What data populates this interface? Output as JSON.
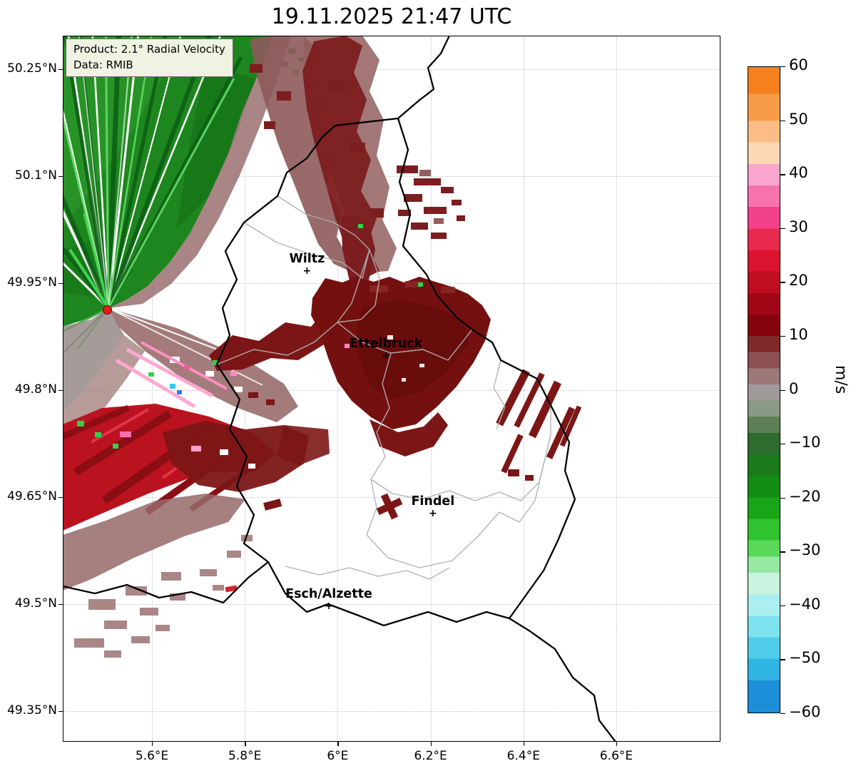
{
  "title": "19.11.2025 21:47 UTC",
  "info_box": {
    "line1": "Product: 2.1° Radial Velocity",
    "line2": "Data: RMIB"
  },
  "axes": {
    "lat_ticks": [
      {
        "label": "50.25°N",
        "value": 50.25
      },
      {
        "label": "50.1°N",
        "value": 50.1
      },
      {
        "label": "49.95°N",
        "value": 49.95
      },
      {
        "label": "49.8°N",
        "value": 49.8
      },
      {
        "label": "49.65°N",
        "value": 49.65
      },
      {
        "label": "49.5°N",
        "value": 49.5
      },
      {
        "label": "49.35°N",
        "value": 49.35
      }
    ],
    "lon_ticks": [
      {
        "label": "5.6°E",
        "value": 5.6
      },
      {
        "label": "5.8°E",
        "value": 5.8
      },
      {
        "label": "6°E",
        "value": 6.0
      },
      {
        "label": "6.2°E",
        "value": 6.2
      },
      {
        "label": "6.4°E",
        "value": 6.4
      },
      {
        "label": "6.6°E",
        "value": 6.6
      }
    ]
  },
  "cities": [
    {
      "name": "Wiltz",
      "lon": 5.934,
      "lat": 49.966
    },
    {
      "name": "Ettelbruck",
      "lon": 6.104,
      "lat": 49.847
    },
    {
      "name": "Findel",
      "lon": 6.205,
      "lat": 49.626
    },
    {
      "name": "Esch/Alzette",
      "lon": 5.981,
      "lat": 49.496
    }
  ],
  "radar_site": {
    "lon": 5.505,
    "lat": 49.912
  },
  "colorbar": {
    "unit": "m/s",
    "min": -60,
    "max": 60,
    "ticks": [
      60,
      50,
      40,
      30,
      20,
      10,
      0,
      -10,
      -20,
      -30,
      -40,
      -50,
      -60
    ],
    "stops": [
      {
        "v": 60,
        "c": "#f5801c"
      },
      {
        "v": 55,
        "c": "#f99c4a"
      },
      {
        "v": 50,
        "c": "#fbbd85"
      },
      {
        "v": 46,
        "c": "#fcd9b4"
      },
      {
        "v": 42,
        "c": "#fba6ce"
      },
      {
        "v": 38,
        "c": "#f873ae"
      },
      {
        "v": 34,
        "c": "#f2418b"
      },
      {
        "v": 30,
        "c": "#e92a4f"
      },
      {
        "v": 26,
        "c": "#dc1430"
      },
      {
        "v": 22,
        "c": "#c00d20"
      },
      {
        "v": 18,
        "c": "#a10616"
      },
      {
        "v": 14,
        "c": "#85030e"
      },
      {
        "v": 10,
        "c": "#7e2a2a"
      },
      {
        "v": 7,
        "c": "#8d5151"
      },
      {
        "v": 4,
        "c": "#9b7979"
      },
      {
        "v": 1,
        "c": "#a09a9a"
      },
      {
        "v": -2,
        "c": "#8a9a84"
      },
      {
        "v": -5,
        "c": "#5c8156"
      },
      {
        "v": -8,
        "c": "#2e6b2e"
      },
      {
        "v": -12,
        "c": "#1b7a1b"
      },
      {
        "v": -16,
        "c": "#128c12"
      },
      {
        "v": -20,
        "c": "#18a518"
      },
      {
        "v": -24,
        "c": "#2fc32f"
      },
      {
        "v": -28,
        "c": "#5ad95a"
      },
      {
        "v": -31,
        "c": "#96e8a0"
      },
      {
        "v": -34,
        "c": "#c7f3df"
      },
      {
        "v": -38,
        "c": "#abeff0"
      },
      {
        "v": -42,
        "c": "#7fe3ef"
      },
      {
        "v": -46,
        "c": "#4fcde9"
      },
      {
        "v": -50,
        "c": "#30b4e2"
      },
      {
        "v": -54,
        "c": "#1d8ed8"
      },
      {
        "v": -60,
        "c": "#1d8ed8"
      }
    ]
  },
  "chart_data": {
    "type": "heatmap",
    "title": "19.11.2025 21:47 UTC",
    "product": "2.1° Radial Velocity",
    "data_source": "RMIB",
    "variable": "radar radial velocity",
    "unit": "m/s",
    "x_axis": {
      "ticks": [
        "5.6°E",
        "5.8°E",
        "6°E",
        "6.2°E",
        "6.4°E",
        "6.6°E"
      ],
      "range_deg_e": [
        5.41,
        6.82
      ]
    },
    "y_axis": {
      "ticks": [
        "50.25°N",
        "50.1°N",
        "49.95°N",
        "49.8°N",
        "49.65°N",
        "49.5°N",
        "49.35°N"
      ],
      "range_deg_n": [
        49.31,
        50.3
      ]
    },
    "colorbar": {
      "label": "m/s",
      "min": -60,
      "max": 60,
      "ticks": [
        60,
        50,
        40,
        30,
        20,
        10,
        0,
        -10,
        -20,
        -30,
        -40,
        -50,
        -60
      ]
    },
    "grid": "dotted graticule at tick positions",
    "legend_position": "vertical colorbar at right",
    "radar_site": {
      "lon": 5.505,
      "lat": 49.912,
      "marker": "red filled circle"
    },
    "cities": [
      {
        "name": "Wiltz",
        "lon": 5.934,
        "lat": 49.966
      },
      {
        "name": "Ettelbruck",
        "lon": 6.104,
        "lat": 49.847
      },
      {
        "name": "Findel",
        "lon": 6.205,
        "lat": 49.626
      },
      {
        "name": "Esch/Alzette",
        "lon": 5.981,
        "lat": 49.496
      }
    ],
    "velocity_regions": [
      {
        "region": "north-northwest fan from radar site (5.4-6.0°E, 49.92-50.30°N)",
        "values_ms": [
          -25,
          -2
        ],
        "appearance": "solid green sector with radial streak gaps (flow toward radar)"
      },
      {
        "region": "transition strip along zero isodop through the radar site",
        "values_ms": [
          -2,
          5
        ],
        "appearance": "grey / grey-red"
      },
      {
        "region": "upper centre (5.95-6.35°E, 49.95-50.28°N)",
        "values_ms": [
          3,
          18
        ],
        "appearance": "ragged grey-red and dark-red patches"
      },
      {
        "region": "central band around Ettelbruck (5.9-6.55°E, 49.76-49.92°N)",
        "values_ms": [
          10,
          22
        ],
        "appearance": "large solid dark-red area"
      },
      {
        "region": "southwest of radar to left edge (5.4-5.95°E, 49.45-49.90°N)",
        "values_ms": [
          2,
          30
        ],
        "appearance": "bright red band with dark-red radial streaks, grey-red fringes, scattered pink/green/cyan noise pixels"
      },
      {
        "region": "east (6.45-6.75°E, 49.63-49.83°N)",
        "values_ms": [
          10,
          20
        ],
        "appearance": "diagonal dark-red streaks"
      },
      {
        "region": "near Findel (6.1°E, 49.64°N)",
        "values_ms": [
          10,
          18
        ],
        "appearance": "small dark-red cross-shaped mark"
      }
    ]
  }
}
